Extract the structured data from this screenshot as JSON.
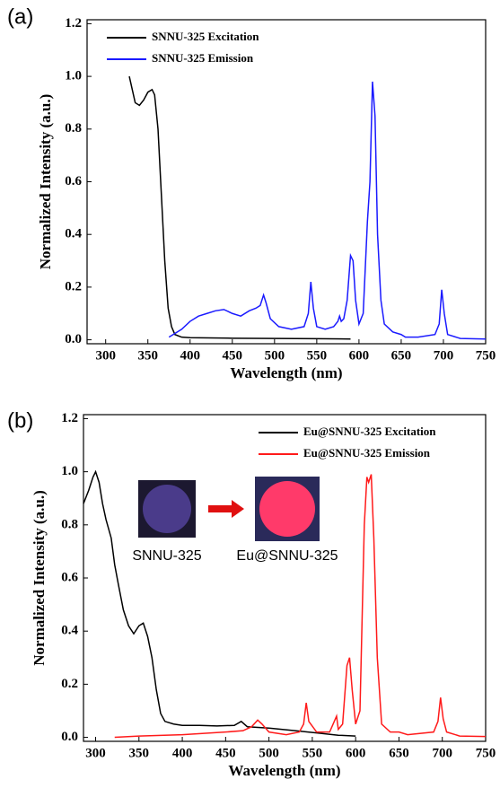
{
  "chart_data": [
    {
      "type": "line",
      "panel_label": "(a)",
      "xlabel": "Wavelength (nm)",
      "ylabel": "Normalized Intensity (a.u.)",
      "xlim": [
        278,
        750
      ],
      "ylim": [
        -0.015,
        1.215
      ],
      "xticks": [
        300,
        350,
        400,
        450,
        500,
        550,
        600,
        650,
        700,
        750
      ],
      "yticks": [
        {
          "value": 0,
          "label": "0.0"
        },
        0.2,
        0.4,
        0.6,
        0.8,
        {
          "value": 1,
          "label": "1.0"
        },
        1.2
      ],
      "legend": "upper left",
      "series": [
        {
          "name": "SNNU-325 Excitation",
          "color": "#000000",
          "x": [
            328,
            335,
            340,
            345,
            350,
            355,
            358,
            362,
            366,
            370,
            374,
            378,
            382,
            390,
            400,
            450,
            500,
            550,
            590
          ],
          "values": [
            1.0,
            0.9,
            0.89,
            0.91,
            0.94,
            0.95,
            0.93,
            0.8,
            0.55,
            0.3,
            0.12,
            0.05,
            0.02,
            0.01,
            0.008,
            0.006,
            0.005,
            0.004,
            0.003
          ]
        },
        {
          "name": "SNNU-325 Emission",
          "color": "#1a1aff",
          "x": [
            375,
            390,
            400,
            410,
            420,
            430,
            440,
            450,
            460,
            470,
            478,
            483,
            487,
            490,
            495,
            505,
            520,
            535,
            540,
            543,
            546,
            550,
            560,
            570,
            575,
            577,
            579,
            582,
            586,
            590,
            593,
            596,
            600,
            605,
            610,
            613,
            616,
            619,
            622,
            626,
            630,
            640,
            650,
            655,
            670,
            690,
            695,
            698,
            701,
            705,
            720,
            750
          ],
          "values": [
            0.01,
            0.04,
            0.07,
            0.09,
            0.1,
            0.11,
            0.115,
            0.1,
            0.09,
            0.11,
            0.12,
            0.13,
            0.17,
            0.14,
            0.08,
            0.05,
            0.04,
            0.05,
            0.1,
            0.22,
            0.12,
            0.05,
            0.04,
            0.05,
            0.07,
            0.09,
            0.07,
            0.08,
            0.15,
            0.32,
            0.3,
            0.15,
            0.06,
            0.1,
            0.45,
            0.6,
            0.98,
            0.85,
            0.4,
            0.15,
            0.06,
            0.03,
            0.02,
            0.01,
            0.01,
            0.02,
            0.06,
            0.19,
            0.1,
            0.02,
            0.005,
            0.003
          ]
        }
      ]
    },
    {
      "type": "line",
      "panel_label": "(b)",
      "xlabel": "Wavelength (nm)",
      "ylabel": "Normalized Intensity (a.u.)",
      "xlim": [
        286,
        750
      ],
      "ylim": [
        -0.015,
        1.215
      ],
      "xticks": [
        300,
        350,
        400,
        450,
        500,
        550,
        600,
        650,
        700,
        750
      ],
      "yticks": [
        {
          "value": 0,
          "label": "0.0"
        },
        0.2,
        0.4,
        0.6,
        0.8,
        {
          "value": 1,
          "label": "1.0"
        },
        1.2
      ],
      "legend": "upper right",
      "insets": [
        {
          "label": "SNNU-325"
        },
        {
          "label": "Eu@SNNU-325"
        }
      ],
      "series": [
        {
          "name": "Eu@SNNU-325 Excitation",
          "color": "#000000",
          "x": [
            286,
            292,
            297,
            300,
            304,
            308,
            312,
            318,
            322,
            326,
            332,
            338,
            344,
            350,
            355,
            360,
            365,
            370,
            375,
            380,
            390,
            400,
            420,
            440,
            460,
            468,
            475,
            500,
            530,
            560,
            580,
            600
          ],
          "values": [
            0.88,
            0.93,
            0.98,
            1.0,
            0.96,
            0.88,
            0.82,
            0.75,
            0.65,
            0.58,
            0.48,
            0.42,
            0.39,
            0.42,
            0.43,
            0.38,
            0.3,
            0.18,
            0.09,
            0.06,
            0.05,
            0.045,
            0.045,
            0.043,
            0.045,
            0.06,
            0.04,
            0.035,
            0.025,
            0.015,
            0.008,
            0.005
          ]
        },
        {
          "name": "Eu@SNNU-325 Emission",
          "color": "#ff1a1a",
          "x": [
            322,
            350,
            400,
            450,
            470,
            480,
            487,
            492,
            500,
            520,
            535,
            540,
            543,
            546,
            555,
            570,
            578,
            580,
            585,
            590,
            593,
            596,
            600,
            605,
            610,
            613,
            615,
            618,
            621,
            625,
            630,
            640,
            650,
            660,
            690,
            695,
            698,
            701,
            705,
            720,
            750
          ],
          "values": [
            0.0,
            0.005,
            0.01,
            0.02,
            0.025,
            0.04,
            0.065,
            0.05,
            0.02,
            0.01,
            0.02,
            0.05,
            0.13,
            0.06,
            0.02,
            0.02,
            0.08,
            0.03,
            0.05,
            0.27,
            0.3,
            0.18,
            0.05,
            0.1,
            0.8,
            0.98,
            0.96,
            0.99,
            0.75,
            0.3,
            0.05,
            0.02,
            0.02,
            0.01,
            0.02,
            0.06,
            0.15,
            0.07,
            0.02,
            0.005,
            0.003
          ]
        }
      ]
    }
  ]
}
